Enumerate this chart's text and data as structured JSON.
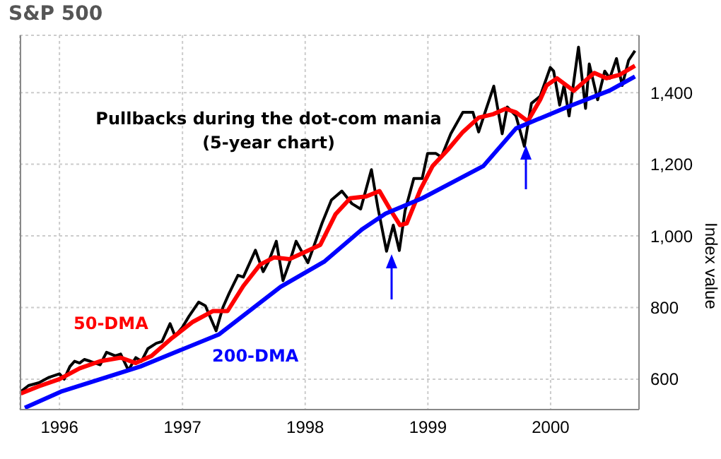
{
  "chart_data": {
    "type": "line",
    "title": "S&P 500",
    "subtitle": "Pullbacks during the dot-com mania\n(5-year chart)",
    "ylabel": "Index value",
    "xlim": [
      "1995-09-05",
      "2000-09-20"
    ],
    "xticks": [
      "1996",
      "1997",
      "1998",
      "1999",
      "2000"
    ],
    "ylim": [
      515,
      1560
    ],
    "yticks": [
      600,
      800,
      {
        "value": 1000,
        "label": "1,000"
      },
      {
        "value": 1200,
        "label": "1,200"
      },
      {
        "value": 1400,
        "label": "1,400"
      }
    ],
    "grid": true,
    "marker": "none",
    "line_style": "solid",
    "series": [
      {
        "color": "#000000",
        "x": [
          "1995-09-08",
          "1995-10-01",
          "1995-11-01",
          "1995-12-01",
          "1996-01-01",
          "1996-01-15",
          "1996-02-01",
          "1996-02-15",
          "1996-03-01",
          "1996-03-15",
          "1996-04-01",
          "1996-05-01",
          "1996-05-20",
          "1996-06-15",
          "1996-07-01",
          "1996-07-24",
          "1996-08-15",
          "1996-09-01",
          "1996-09-20",
          "1996-10-15",
          "1996-11-01",
          "1996-11-25",
          "1996-12-10",
          "1997-01-01",
          "1997-01-20",
          "1997-02-18",
          "1997-03-10",
          "1997-04-11",
          "1997-05-01",
          "1997-05-20",
          "1997-06-15",
          "1997-07-01",
          "1997-08-06",
          "1997-08-29",
          "1997-09-15",
          "1997-10-07",
          "1997-10-27",
          "1997-11-15",
          "1997-12-05",
          "1998-01-09",
          "1998-02-01",
          "1998-02-20",
          "1998-03-20",
          "1998-04-20",
          "1998-05-20",
          "1998-06-15",
          "1998-07-17",
          "1998-08-05",
          "1998-08-31",
          "1998-09-20",
          "1998-10-08",
          "1998-10-25",
          "1998-11-20",
          "1998-12-15",
          "1998-12-31",
          "1999-01-25",
          "1999-02-10",
          "1999-03-10",
          "1999-04-15",
          "1999-05-15",
          "1999-06-01",
          "1999-06-20",
          "1999-07-16",
          "1999-08-10",
          "1999-08-25",
          "1999-09-20",
          "1999-10-15",
          "1999-11-05",
          "1999-12-01",
          "1999-12-31",
          "2000-01-10",
          "2000-01-28",
          "2000-02-10",
          "2000-02-25",
          "2000-03-24",
          "2000-04-14",
          "2000-04-25",
          "2000-05-20",
          "2000-06-10",
          "2000-06-25",
          "2000-07-15",
          "2000-08-01",
          "2000-08-20",
          "2000-09-08"
        ],
        "values": [
          565,
          582,
          590,
          605,
          615,
          600,
          635,
          650,
          645,
          655,
          650,
          640,
          675,
          665,
          670,
          625,
          660,
          650,
          685,
          700,
          705,
          755,
          720,
          745,
          775,
          815,
          805,
          735,
          800,
          840,
          890,
          885,
          960,
          900,
          930,
          985,
          875,
          925,
          985,
          925,
          985,
          1035,
          1100,
          1125,
          1090,
          1075,
          1185,
          1080,
          957,
          1030,
          959,
          1070,
          1160,
          1160,
          1230,
          1230,
          1220,
          1285,
          1345,
          1345,
          1290,
          1345,
          1418,
          1285,
          1360,
          1335,
          1250,
          1370,
          1390,
          1470,
          1460,
          1365,
          1420,
          1335,
          1527,
          1356,
          1480,
          1380,
          1460,
          1440,
          1495,
          1420,
          1490,
          1517
        ]
      },
      {
        "name": "50-DMA",
        "color": "#ff0000",
        "x": [
          "1995-09-08",
          "1995-11-01",
          "1996-01-01",
          "1996-03-01",
          "1996-05-01",
          "1996-07-01",
          "1996-08-15",
          "1996-10-01",
          "1996-12-01",
          "1997-02-01",
          "1997-04-01",
          "1997-05-15",
          "1997-07-01",
          "1997-08-20",
          "1997-10-01",
          "1997-11-15",
          "1998-01-01",
          "1998-02-15",
          "1998-04-01",
          "1998-05-15",
          "1998-07-01",
          "1998-08-10",
          "1998-09-10",
          "1998-10-10",
          "1998-10-30",
          "1998-12-10",
          "1999-01-15",
          "1999-03-01",
          "1999-04-15",
          "1999-06-01",
          "1999-07-15",
          "1999-08-20",
          "1999-09-20",
          "1999-10-25",
          "1999-12-01",
          "1999-12-20",
          "2000-01-20",
          "2000-03-10",
          "2000-05-10",
          "2000-06-15",
          "2000-07-25",
          "2000-09-08"
        ],
        "values": [
          560,
          580,
          600,
          630,
          650,
          660,
          645,
          665,
          715,
          760,
          790,
          790,
          860,
          920,
          940,
          935,
          955,
          975,
          1060,
          1105,
          1110,
          1125,
          1075,
          1030,
          1035,
          1130,
          1195,
          1240,
          1290,
          1330,
          1340,
          1355,
          1345,
          1320,
          1380,
          1420,
          1440,
          1405,
          1455,
          1440,
          1450,
          1475
        ]
      },
      {
        "name": "200-DMA",
        "color": "#0000ff",
        "x": [
          "1995-09-20",
          "1996-01-05",
          "1996-08-28",
          "1997-04-20",
          "1997-10-20",
          "1998-02-28",
          "1998-06-20",
          "1998-08-28",
          "1998-12-15",
          "1999-06-15",
          "1999-09-20",
          "2000-02-20",
          "2000-06-25",
          "2000-09-08"
        ],
        "values": [
          520,
          565,
          635,
          725,
          858,
          929,
          1019,
          1062,
          1105,
          1195,
          1300,
          1360,
          1406,
          1445
        ]
      }
    ]
  }
}
